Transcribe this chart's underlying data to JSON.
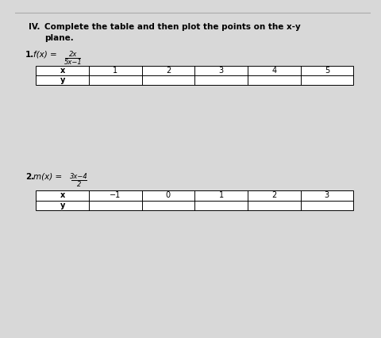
{
  "title_roman": "IV.",
  "title_line1": "Complete the table and then plot the points on the x-y",
  "title_line2": "plane.",
  "bg_color": "#d8d8d8",
  "paper_color": "#ffffff",
  "problem1_label": "1.",
  "problem1_func_prefix": "f(x) = ",
  "problem1_numerator": "2x",
  "problem1_denominator": "5x−1",
  "table1_x_values": [
    "x",
    "1",
    "2",
    "3",
    "4",
    "5"
  ],
  "table1_y_label": "y",
  "problem2_label": "2.",
  "problem2_func_prefix": "m(x) = ",
  "problem2_numerator": "3x−4",
  "problem2_denominator": "2",
  "table2_x_values": [
    "x",
    "−1",
    "0",
    "1",
    "2",
    "3"
  ],
  "table2_y_label": "y",
  "top_line_color": "#888888"
}
